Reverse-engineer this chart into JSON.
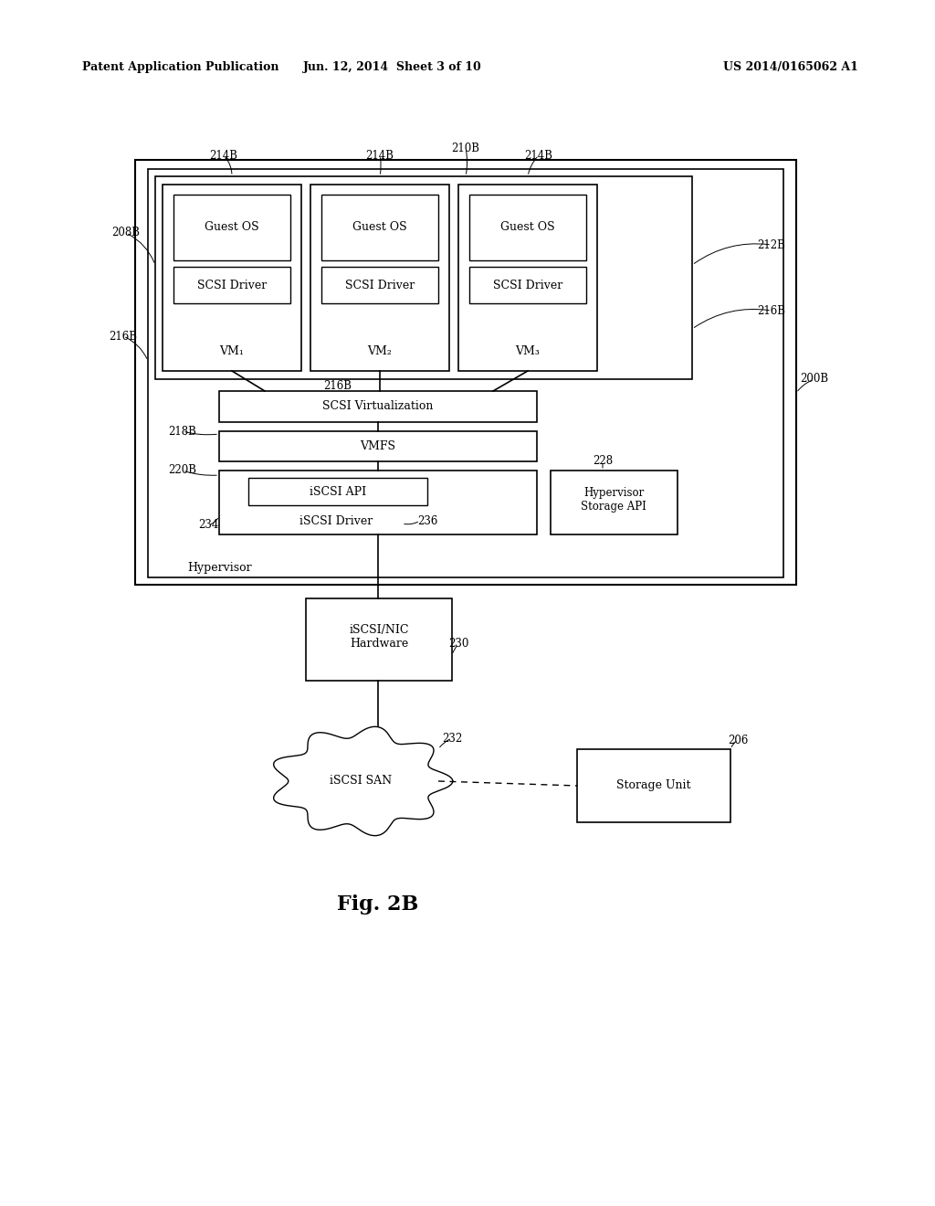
{
  "bg_color": "#ffffff",
  "header_left": "Patent Application Publication",
  "header_mid": "Jun. 12, 2014  Sheet 3 of 10",
  "header_right": "US 2014/0165062 A1",
  "fig_label": "Fig. 2B"
}
